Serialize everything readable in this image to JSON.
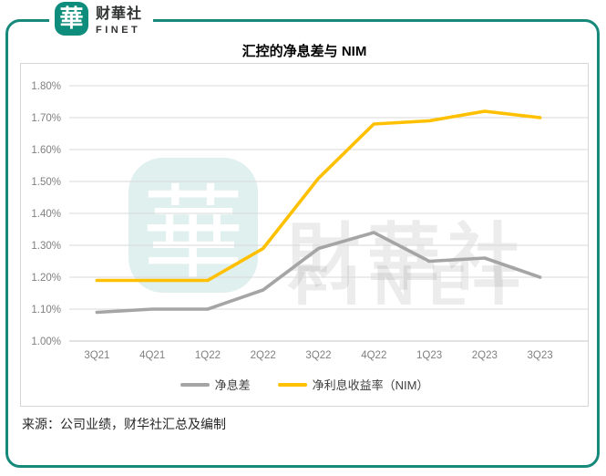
{
  "header": {
    "logo_glyph": "華",
    "brand_name": "财華社",
    "brand_sub": "FINET"
  },
  "watermark": {
    "logo_glyph": "華",
    "text_cn": "財華社",
    "text_en": "FINET"
  },
  "footer": {
    "source": "来源：公司业绩，财华社汇总及编制"
  },
  "colors": {
    "brand_teal": "#0E8C7C",
    "border_teal": "#17897B",
    "grid_line": "#D9D9D9",
    "axis_text": "#808080",
    "series_gray": "#A5A5A5",
    "series_yellow": "#FFC000"
  },
  "chart_data": {
    "type": "line",
    "title": "汇控的净息差与 NIM",
    "categories": [
      "3Q21",
      "4Q21",
      "1Q22",
      "2Q22",
      "3Q22",
      "4Q22",
      "1Q23",
      "2Q23",
      "3Q23"
    ],
    "series": [
      {
        "name": "净息差",
        "color": "#A5A5A5",
        "values": [
          1.09,
          1.1,
          1.1,
          1.16,
          1.29,
          1.34,
          1.25,
          1.26,
          1.2
        ]
      },
      {
        "name": "净利息收益率（NIM）",
        "color": "#FFC000",
        "values": [
          1.19,
          1.19,
          1.19,
          1.29,
          1.51,
          1.68,
          1.69,
          1.72,
          1.7
        ]
      }
    ],
    "ylim": [
      1.0,
      1.8
    ],
    "y_tick_labels": [
      "1.00%",
      "1.10%",
      "1.20%",
      "1.30%",
      "1.40%",
      "1.50%",
      "1.60%",
      "1.70%",
      "1.80%"
    ],
    "xlabel": "",
    "ylabel": "",
    "grid": true,
    "legend_position": "bottom"
  }
}
